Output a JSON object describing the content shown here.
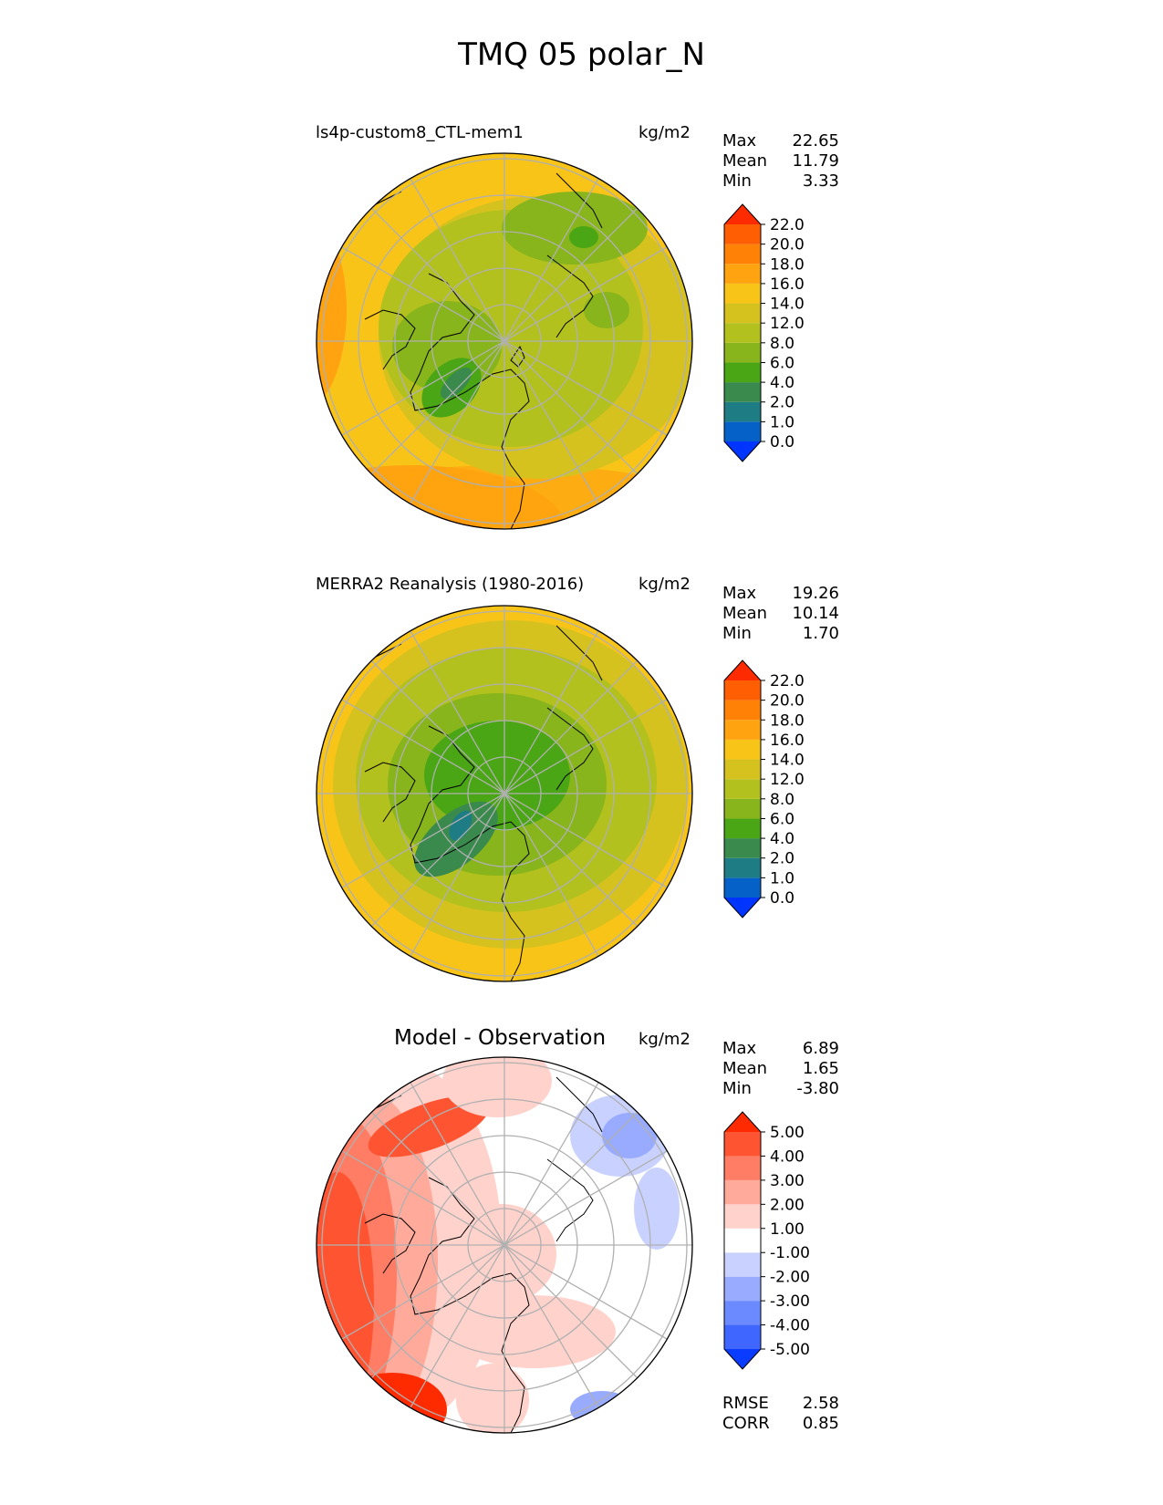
{
  "title": "TMQ 05 polar_N",
  "colors": {
    "tmq_levels": [
      "#0034ff",
      "#0561c8",
      "#1d7c84",
      "#3a8a4d",
      "#4aa614",
      "#88b51b",
      "#b3c11f",
      "#d6c21f",
      "#f9c418",
      "#ffa310",
      "#ff8207",
      "#ff5e02",
      "#ff2b00"
    ],
    "diff_levels": [
      "#0a3cff",
      "#3f66ff",
      "#6b8aff",
      "#98abff",
      "#c9d2ff",
      "#ffffff",
      "#ffd3cc",
      "#ffaa9a",
      "#ff7d64",
      "#ff5432",
      "#ff2b00"
    ],
    "land_outline": "#000000",
    "grid": "#b0b0b0"
  },
  "panels": [
    {
      "id": "model",
      "title": "ls4p-custom8_CTL-mem1",
      "units": "kg/m2",
      "stats": {
        "max_label": "Max",
        "max": "22.65",
        "mean_label": "Mean",
        "mean": "11.79",
        "min_label": "Min",
        "min": "3.33"
      },
      "colorbar": [
        "0.0",
        "1.0",
        "2.0",
        "4.0",
        "6.0",
        "8.0",
        "12.0",
        "14.0",
        "16.0",
        "18.0",
        "20.0",
        "22.0"
      ]
    },
    {
      "id": "obs",
      "title": "MERRA2 Reanalysis (1980-2016)",
      "units": "kg/m2",
      "stats": {
        "max_label": "Max",
        "max": "19.26",
        "mean_label": "Mean",
        "mean": "10.14",
        "min_label": "Min",
        "min": "1.70"
      },
      "colorbar": [
        "0.0",
        "1.0",
        "2.0",
        "4.0",
        "6.0",
        "8.0",
        "12.0",
        "14.0",
        "16.0",
        "18.0",
        "20.0",
        "22.0"
      ]
    },
    {
      "id": "diff",
      "title": "Model - Observation",
      "units": "kg/m2",
      "stats": {
        "max_label": "Max",
        "max": "6.89",
        "mean_label": "Mean",
        "mean": "1.65",
        "min_label": "Min",
        "min": "-3.80"
      },
      "colorbar": [
        "-5.00",
        "-4.00",
        "-3.00",
        "-2.00",
        "-1.00",
        "1.00",
        "2.00",
        "3.00",
        "4.00",
        "5.00"
      ],
      "rmse_label": "RMSE",
      "rmse": "2.58",
      "corr_label": "CORR",
      "corr": "0.85"
    }
  ],
  "chart_data": [
    {
      "type": "heatmap",
      "projection": "north polar stereographic",
      "title": "ls4p-custom8_CTL-mem1",
      "units": "kg/m2",
      "max": 22.65,
      "mean": 11.79,
      "min": 3.33,
      "levels": [
        0,
        1,
        2,
        4,
        6,
        8,
        12,
        14,
        16,
        18,
        20,
        22
      ]
    },
    {
      "type": "heatmap",
      "projection": "north polar stereographic",
      "title": "MERRA2 Reanalysis (1980-2016)",
      "units": "kg/m2",
      "max": 19.26,
      "mean": 10.14,
      "min": 1.7,
      "levels": [
        0,
        1,
        2,
        4,
        6,
        8,
        12,
        14,
        16,
        18,
        20,
        22
      ]
    },
    {
      "type": "heatmap",
      "projection": "north polar stereographic",
      "title": "Model - Observation",
      "units": "kg/m2",
      "max": 6.89,
      "mean": 1.65,
      "min": -3.8,
      "rmse": 2.58,
      "corr": 0.85,
      "levels": [
        -5,
        -4,
        -3,
        -2,
        -1,
        1,
        2,
        3,
        4,
        5
      ]
    }
  ]
}
